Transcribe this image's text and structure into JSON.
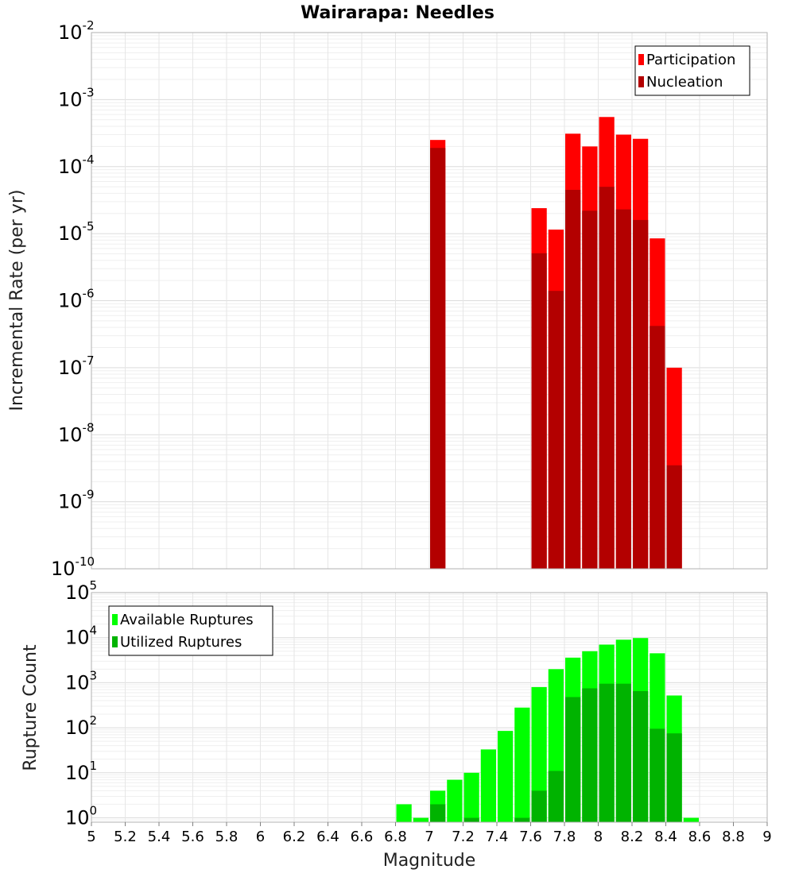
{
  "chart_data": [
    {
      "type": "bar",
      "title": "Wairarapa: Needles",
      "ylabel": "Incremental Rate (per yr)",
      "xlabel": "",
      "log_y": true,
      "ylim": [
        1e-10,
        0.01
      ],
      "xlim": [
        5,
        9
      ],
      "bin_width": 0.1,
      "grid": true,
      "legend_position": "top-right",
      "y_tick_exponents": [
        "-10",
        "-9",
        "-8",
        "-7",
        "-6",
        "-5",
        "-4",
        "-3",
        "-2"
      ],
      "series": [
        {
          "name": "Participation",
          "color": "#ff0000",
          "x": [
            7.05,
            7.65,
            7.75,
            7.85,
            7.95,
            8.05,
            8.15,
            8.25,
            8.35,
            8.45
          ],
          "values": [
            0.00025,
            2.4e-05,
            1.15e-05,
            0.00031,
            0.0002,
            0.00055,
            0.0003,
            0.00026,
            8.5e-06,
            1e-07
          ]
        },
        {
          "name": "Nucleation",
          "color": "#b30000",
          "x": [
            7.05,
            7.65,
            7.75,
            7.85,
            7.95,
            8.05,
            8.15,
            8.25,
            8.35,
            8.45
          ],
          "values": [
            0.00019,
            5.1e-06,
            1.4e-06,
            4.5e-05,
            2.2e-05,
            5e-05,
            2.3e-05,
            1.6e-05,
            4.2e-07,
            3.5e-09
          ]
        }
      ]
    },
    {
      "type": "bar",
      "title": "",
      "ylabel": "Rupture Count",
      "xlabel": "Magnitude",
      "log_y": true,
      "ylim": [
        0.8,
        100000
      ],
      "xlim": [
        5,
        9
      ],
      "bin_width": 0.1,
      "grid": true,
      "legend_position": "top-left",
      "y_tick_exponents": [
        "0",
        "1",
        "2",
        "3",
        "4",
        "5"
      ],
      "x_tick_labels": [
        "5",
        "5.2",
        "5.4",
        "5.6",
        "5.8",
        "6",
        "6.2",
        "6.4",
        "6.6",
        "6.8",
        "7",
        "7.2",
        "7.4",
        "7.6",
        "7.8",
        "8",
        "8.2",
        "8.4",
        "8.6",
        "8.8",
        "9"
      ],
      "series": [
        {
          "name": "Available Ruptures",
          "color": "#00ff00",
          "x": [
            6.85,
            6.95,
            7.05,
            7.15,
            7.25,
            7.35,
            7.45,
            7.55,
            7.65,
            7.75,
            7.85,
            7.95,
            8.05,
            8.15,
            8.25,
            8.35,
            8.45,
            8.55
          ],
          "values": [
            2,
            1,
            4,
            7,
            10,
            33,
            85,
            280,
            800,
            2000,
            3600,
            5000,
            7000,
            9000,
            9800,
            4500,
            520,
            1
          ]
        },
        {
          "name": "Utilized Ruptures",
          "color": "#00b300",
          "x": [
            7.05,
            7.25,
            7.55,
            7.65,
            7.75,
            7.85,
            7.95,
            8.05,
            8.15,
            8.25,
            8.35,
            8.45
          ],
          "values": [
            2,
            1,
            1,
            4,
            11,
            480,
            750,
            950,
            950,
            650,
            95,
            75
          ]
        }
      ]
    }
  ]
}
